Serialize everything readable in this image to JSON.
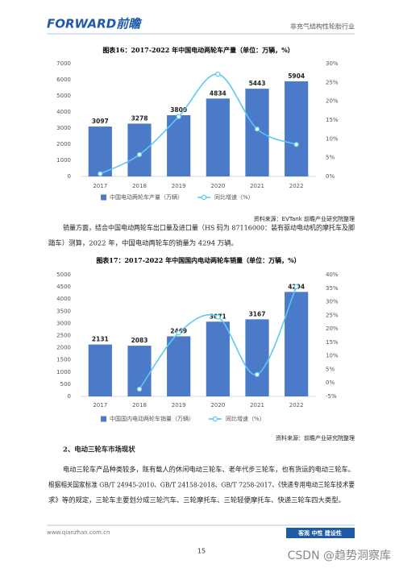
{
  "header": {
    "logo": "FORWARD前瞻",
    "industry": "非充气结构性轮胎行业"
  },
  "chart_data": [
    {
      "type": "bar_line",
      "title": "图表16：2017-2022 年中国电动两轮车产量（单位：万辆，%）",
      "categories": [
        "2017",
        "2018",
        "2019",
        "2020",
        "2021",
        "2022"
      ],
      "series": [
        {
          "name": "中国电动两轮车产量（万辆）",
          "color": "#4a7ac8",
          "values": [
            3097,
            3278,
            3800,
            4834,
            5443,
            5904
          ]
        },
        {
          "name": "同比增速（%）",
          "color": "#5ec8f2",
          "axis": "y2",
          "values": [
            0.7,
            5.8,
            15.9,
            27.2,
            12.6,
            8.5
          ]
        }
      ],
      "ylim": [
        0,
        7000
      ],
      "yticks": [
        0,
        1000,
        2000,
        3000,
        4000,
        5000,
        6000,
        7000
      ],
      "y2lim": [
        0,
        30
      ],
      "y2ticks": [
        {
          "value": 0,
          "label": "0%"
        },
        {
          "value": 5,
          "label": "5%"
        },
        {
          "value": 10,
          "label": "10%"
        },
        {
          "value": 15,
          "label": "15%"
        },
        {
          "value": 20,
          "label": "20%"
        },
        {
          "value": 25,
          "label": "25%"
        },
        {
          "value": 30,
          "label": "30%"
        }
      ],
      "source": "资料来源：EVTank 前瞻产业研究院整理"
    },
    {
      "type": "bar_line",
      "title": "图表17：2017-2022 年中国国内电动两轮车销量（单位：万辆，%）",
      "categories": [
        "2017",
        "2018",
        "2019",
        "2020",
        "2021",
        "2022"
      ],
      "series": [
        {
          "name": "中国国内电动两轮车销量（万辆）",
          "color": "#4a7ac8",
          "values": [
            2131,
            2083,
            2469,
            3071,
            3167,
            4294
          ]
        },
        {
          "name": "同比增速（%）",
          "color": "#5ec8f2",
          "axis": "y2",
          "values": [
            null,
            -2.3,
            18.5,
            24.4,
            3.1,
            35.6
          ]
        }
      ],
      "ylim": [
        0,
        5000
      ],
      "yticks": [
        0,
        500,
        1000,
        1500,
        2000,
        2500,
        3000,
        3500,
        4000,
        4500,
        5000
      ],
      "y2lim": [
        -5,
        40
      ],
      "y2ticks": [
        {
          "value": -5,
          "label": "-5%"
        },
        {
          "value": 0,
          "label": "0%"
        },
        {
          "value": 5,
          "label": "5%"
        },
        {
          "value": 10,
          "label": "10%"
        },
        {
          "value": 15,
          "label": "15%"
        },
        {
          "value": 20,
          "label": "20%"
        },
        {
          "value": 25,
          "label": "25%"
        },
        {
          "value": 30,
          "label": "30%"
        },
        {
          "value": 35,
          "label": "35%"
        },
        {
          "value": 40,
          "label": "40%"
        }
      ],
      "source": "资料来源：前瞻产业研究院整理"
    }
  ],
  "paragraph1": [
    "销量方面，结合中国电动两轮车出口量及进口量（HS 码为 87116000：装有驱动电动机的摩托车及脚",
    "踏车）测算，2022 年，中国电动两轮车的销量为 4294 万辆。"
  ],
  "heading": "2、电动三轮车市场现状",
  "paragraph2": [
    "电动三轮车产品种类较多，既有载人的休闲电动三轮车、老年代步三轮车，也有货运的电动三轮车。",
    "根据相关国家标准 GB/T 24945-2010、GB/T 24158-2018、GB/T 7258-2017、《快递专用电动三轮车技术要",
    "求》等的规定，三轮车主要划分成三轮汽车、三轮摩托车、三轮轻便摩托车、快递三轮车四大类型。"
  ],
  "footer": {
    "url": "www.qianzhan.com.cn",
    "slogan": "客观 中性 建设性",
    "page": "15",
    "watermark": "CSDN @趋势洞察库"
  }
}
